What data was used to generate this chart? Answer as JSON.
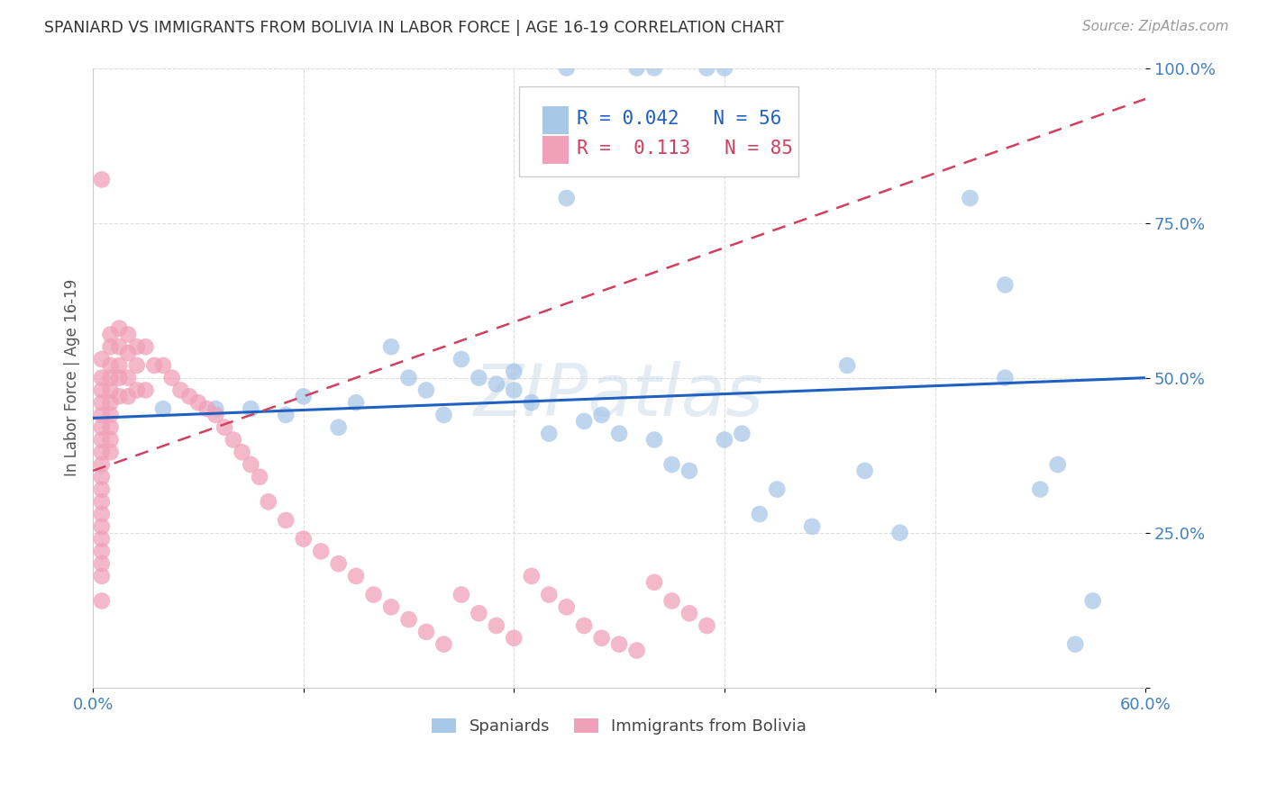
{
  "title": "SPANIARD VS IMMIGRANTS FROM BOLIVIA IN LABOR FORCE | AGE 16-19 CORRELATION CHART",
  "source": "Source: ZipAtlas.com",
  "ylabel": "In Labor Force | Age 16-19",
  "xlim": [
    0.0,
    0.6
  ],
  "ylim": [
    0.0,
    1.0
  ],
  "xticks": [
    0.0,
    0.12,
    0.24,
    0.36,
    0.48,
    0.6
  ],
  "xticklabels": [
    "0.0%",
    "",
    "",
    "",
    "",
    "60.0%"
  ],
  "yticks": [
    0.0,
    0.25,
    0.5,
    0.75,
    1.0
  ],
  "yticklabels": [
    "",
    "25.0%",
    "50.0%",
    "75.0%",
    "100.0%"
  ],
  "watermark": "ZIPatlas",
  "legend_blue_r": "0.042",
  "legend_blue_n": "56",
  "legend_pink_r": "0.113",
  "legend_pink_n": "85",
  "blue_color": "#a8c8e8",
  "pink_color": "#f0a0b8",
  "blue_line_color": "#2060c0",
  "pink_line_color": "#d04060",
  "grid_color": "#dddddd",
  "title_color": "#333333",
  "axis_label_color": "#4080c0",
  "blue_scatter_x": [
    0.27,
    0.31,
    0.32,
    0.35,
    0.36,
    0.26,
    0.27,
    0.04,
    0.07,
    0.09,
    0.11,
    0.12,
    0.14,
    0.15,
    0.17,
    0.18,
    0.19,
    0.2,
    0.21,
    0.22,
    0.23,
    0.24,
    0.24,
    0.25,
    0.26,
    0.28,
    0.29,
    0.3,
    0.32,
    0.33,
    0.34,
    0.36,
    0.37,
    0.38,
    0.39,
    0.41,
    0.43,
    0.44,
    0.46,
    0.5,
    0.52,
    0.54,
    0.55,
    0.52,
    0.57,
    0.56
  ],
  "blue_scatter_y": [
    1.0,
    1.0,
    1.0,
    1.0,
    1.0,
    0.87,
    0.79,
    0.45,
    0.45,
    0.45,
    0.44,
    0.47,
    0.42,
    0.46,
    0.55,
    0.5,
    0.48,
    0.44,
    0.53,
    0.5,
    0.49,
    0.51,
    0.48,
    0.46,
    0.41,
    0.43,
    0.44,
    0.41,
    0.4,
    0.36,
    0.35,
    0.4,
    0.41,
    0.28,
    0.32,
    0.26,
    0.52,
    0.35,
    0.25,
    0.79,
    0.5,
    0.32,
    0.36,
    0.65,
    0.14,
    0.07
  ],
  "pink_scatter_x": [
    0.005,
    0.005,
    0.005,
    0.005,
    0.005,
    0.005,
    0.005,
    0.005,
    0.005,
    0.005,
    0.005,
    0.005,
    0.005,
    0.005,
    0.005,
    0.005,
    0.005,
    0.005,
    0.005,
    0.005,
    0.01,
    0.01,
    0.01,
    0.01,
    0.01,
    0.01,
    0.01,
    0.01,
    0.01,
    0.01,
    0.015,
    0.015,
    0.015,
    0.015,
    0.015,
    0.02,
    0.02,
    0.02,
    0.02,
    0.025,
    0.025,
    0.025,
    0.03,
    0.03,
    0.035,
    0.04,
    0.045,
    0.05,
    0.055,
    0.06,
    0.065,
    0.07,
    0.075,
    0.08,
    0.085,
    0.09,
    0.095,
    0.1,
    0.11,
    0.12,
    0.13,
    0.14,
    0.15,
    0.16,
    0.17,
    0.18,
    0.19,
    0.2,
    0.21,
    0.22,
    0.23,
    0.24,
    0.25,
    0.26,
    0.27,
    0.28,
    0.29,
    0.3,
    0.31,
    0.32,
    0.33,
    0.34,
    0.35
  ],
  "pink_scatter_y": [
    0.82,
    0.53,
    0.5,
    0.48,
    0.46,
    0.44,
    0.42,
    0.4,
    0.38,
    0.36,
    0.34,
    0.32,
    0.3,
    0.28,
    0.26,
    0.24,
    0.22,
    0.2,
    0.18,
    0.14,
    0.57,
    0.55,
    0.52,
    0.5,
    0.48,
    0.46,
    0.44,
    0.42,
    0.4,
    0.38,
    0.58,
    0.55,
    0.52,
    0.5,
    0.47,
    0.57,
    0.54,
    0.5,
    0.47,
    0.55,
    0.52,
    0.48,
    0.55,
    0.48,
    0.52,
    0.52,
    0.5,
    0.48,
    0.47,
    0.46,
    0.45,
    0.44,
    0.42,
    0.4,
    0.38,
    0.36,
    0.34,
    0.3,
    0.27,
    0.24,
    0.22,
    0.2,
    0.18,
    0.15,
    0.13,
    0.11,
    0.09,
    0.07,
    0.15,
    0.12,
    0.1,
    0.08,
    0.18,
    0.15,
    0.13,
    0.1,
    0.08,
    0.07,
    0.06,
    0.17,
    0.14,
    0.12,
    0.1
  ],
  "blue_trend_x0": 0.0,
  "blue_trend_x1": 0.6,
  "blue_trend_y0": 0.435,
  "blue_trend_y1": 0.5,
  "pink_trend_x0": 0.0,
  "pink_trend_x1": 0.6,
  "pink_trend_y0": 0.35,
  "pink_trend_y1": 0.95
}
